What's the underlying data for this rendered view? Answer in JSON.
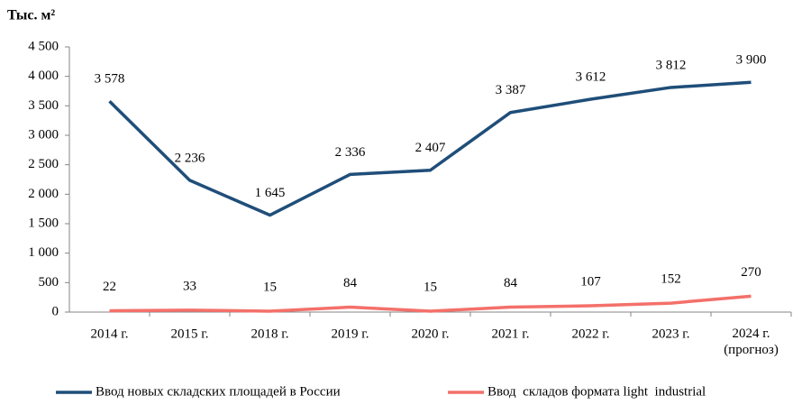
{
  "chart_data": {
    "type": "line",
    "y_label": "Тыс. м²",
    "categories": [
      "2014 г.",
      "2015 г.",
      "2018 г.",
      "2019 г.",
      "2020 г.",
      "2021 г.",
      "2022 г.",
      "2023 г.",
      "2024 г.\n(прогноз)"
    ],
    "series": [
      {
        "name": "Ввод новых складских площадей в России",
        "color": "#1f4e79",
        "values": [
          3578,
          2236,
          1645,
          2336,
          2407,
          3387,
          3612,
          3812,
          3900
        ],
        "value_labels": [
          "3 578",
          "2 236",
          "1 645",
          "2 336",
          "2 407",
          "3 387",
          "3 612",
          "3 812",
          "3 900"
        ]
      },
      {
        "name": "Ввод  складов формата light  industrial",
        "color": "#f4706a",
        "values": [
          22,
          33,
          15,
          84,
          15,
          84,
          107,
          152,
          270
        ]
      }
    ],
    "ylim": [
      0,
      4500
    ],
    "yticks": [
      0,
      500,
      {
        "value": 1000,
        "label": "1 000"
      },
      {
        "value": 1500,
        "label": "1 500"
      },
      {
        "value": 2000,
        "label": "2 000"
      },
      {
        "value": 2500,
        "label": "2 500"
      },
      {
        "value": 3000,
        "label": "3 000"
      },
      {
        "value": 3500,
        "label": "3 500"
      },
      {
        "value": 4000,
        "label": "4 000"
      },
      {
        "value": 4500,
        "label": "4 500"
      }
    ],
    "legend": "bottom"
  }
}
